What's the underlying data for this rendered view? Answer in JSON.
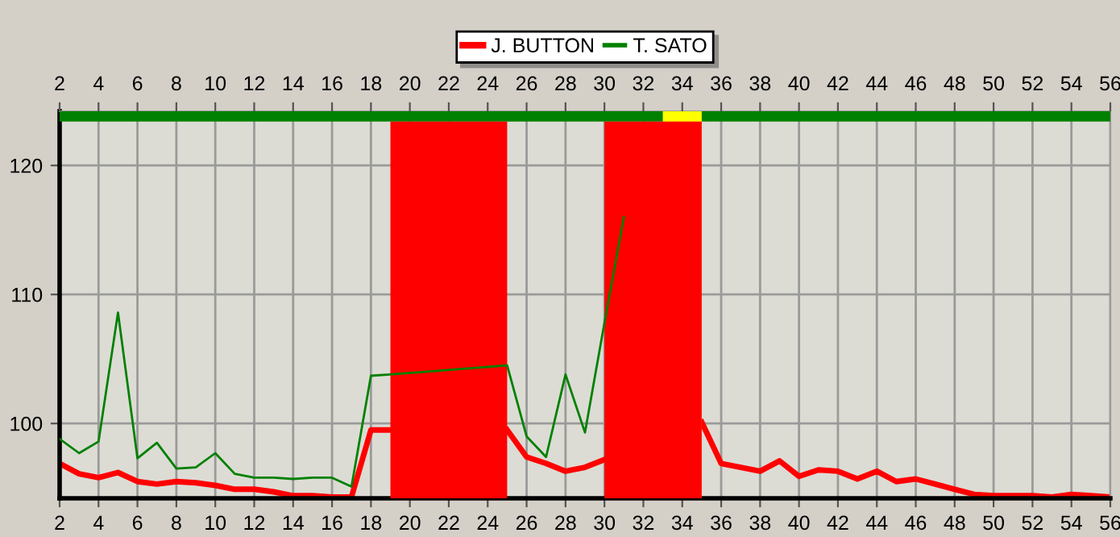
{
  "chart_data": {
    "type": "line",
    "x": [
      2,
      3,
      4,
      5,
      6,
      7,
      8,
      9,
      10,
      11,
      12,
      13,
      14,
      15,
      16,
      17,
      18,
      19,
      20,
      21,
      22,
      23,
      24,
      25,
      26,
      27,
      28,
      29,
      30,
      31,
      32,
      33,
      34,
      35,
      36,
      37,
      38,
      39,
      40,
      41,
      42,
      43,
      44,
      45,
      46,
      47,
      48,
      49,
      50,
      51,
      52,
      53,
      54,
      55,
      56
    ],
    "series": [
      {
        "name": "J. BUTTON",
        "color": "#ff0000",
        "values": [
          96.9,
          96.1,
          95.8,
          96.2,
          95.5,
          95.3,
          95.5,
          95.4,
          95.2,
          94.9,
          94.9,
          94.7,
          94.4,
          94.4,
          94.3,
          94.3,
          99.5,
          99.5,
          null,
          null,
          null,
          null,
          null,
          99.5,
          97.4,
          96.9,
          96.3,
          96.6,
          97.2,
          null,
          null,
          null,
          null,
          100.1,
          96.9,
          96.6,
          96.3,
          97.1,
          95.9,
          96.4,
          96.3,
          95.7,
          96.3,
          95.5,
          95.7,
          95.3,
          94.9,
          94.5,
          94.4,
          94.4,
          94.4,
          94.3,
          94.5,
          94.4,
          94.3
        ]
      },
      {
        "name": "T. SATO",
        "color": "#008000",
        "x": [
          2,
          3,
          4,
          5,
          6,
          7,
          8,
          9,
          10,
          11,
          12,
          13,
          14,
          15,
          16,
          17,
          18,
          19,
          25,
          26,
          27,
          28,
          29,
          30,
          31
        ],
        "values": [
          98.8,
          97.7,
          98.6,
          108.6,
          97.3,
          98.5,
          96.5,
          96.6,
          97.7,
          96.1,
          95.8,
          95.8,
          95.7,
          95.8,
          95.8,
          95.1,
          103.7,
          103.8,
          104.5,
          99.0,
          97.4,
          103.8,
          99.3,
          107.8,
          116
        ]
      }
    ],
    "xlim": [
      2,
      56
    ],
    "xticks": [
      2,
      4,
      6,
      8,
      10,
      12,
      14,
      16,
      18,
      20,
      22,
      24,
      26,
      28,
      30,
      32,
      34,
      36,
      38,
      40,
      42,
      44,
      46,
      48,
      50,
      52,
      54,
      56
    ],
    "x2lim": [
      2,
      56
    ],
    "x2ticks": [
      2,
      4,
      6,
      8,
      10,
      12,
      14,
      16,
      18,
      20,
      22,
      24,
      26,
      28,
      30,
      32,
      34,
      36,
      38,
      40,
      42,
      44,
      46,
      48,
      50,
      52,
      54,
      56
    ],
    "ylim": [
      94.2,
      124.2
    ],
    "yticks": [
      100,
      110,
      120
    ],
    "bands": [
      {
        "axis": "x",
        "from": 19,
        "to": 25,
        "color": "#ff0000"
      },
      {
        "axis": "x",
        "from": 30,
        "to": 35,
        "color": "#ff0000"
      },
      {
        "axis": "y",
        "from": 123.4,
        "to": 124.2,
        "color": "#008000"
      },
      {
        "axis": "x",
        "from": 33,
        "to": 35,
        "color": "#ffff00"
      }
    ],
    "grid": true,
    "legend": "top",
    "marker": "none",
    "line_style": "solid"
  }
}
